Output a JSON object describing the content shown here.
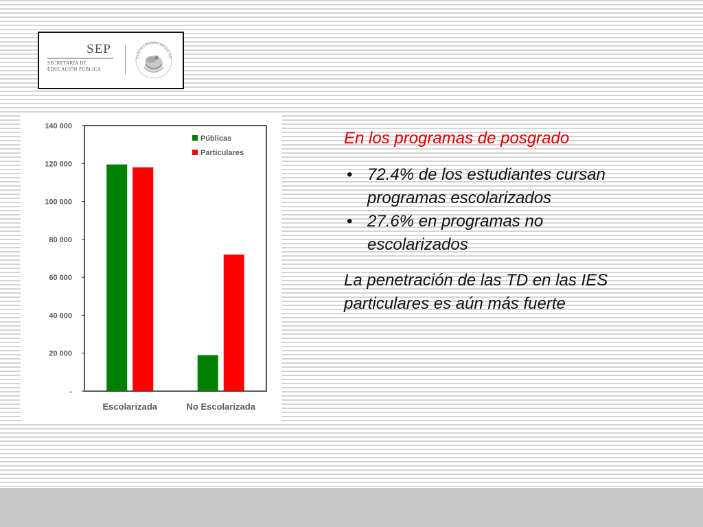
{
  "logo": {
    "acronym": "SEP",
    "subtitle_line1": "SECRETARÍA DE",
    "subtitle_line2": "EDUCACIÓN PÚBLICA",
    "seal_text": "ESTADOS UNIDOS MEXICANOS"
  },
  "text": {
    "heading": "En los programas de posgrado",
    "bullets": [
      "72.4% de los estudiantes cursan programas escolarizados",
      "27.6% en programas no escolarizados"
    ],
    "closing": "La penetración de las TD en las IES particulares es aún más fuerte"
  },
  "chart_data": {
    "type": "bar",
    "title": "",
    "xlabel": "",
    "ylabel": "",
    "categories": [
      "Escolarizada",
      "No Escolarizada"
    ],
    "series": [
      {
        "name": "Públicas",
        "values": [
          119500,
          19000
        ],
        "color": "#008000"
      },
      {
        "name": "Particulares",
        "values": [
          118000,
          72000
        ],
        "color": "#ff0000"
      }
    ],
    "ylim": [
      0,
      140000
    ],
    "y_ticks": [
      {
        "value": 0,
        "label": "-"
      },
      {
        "value": 20000,
        "label": "20 000"
      },
      {
        "value": 40000,
        "label": "40 000"
      },
      {
        "value": 60000,
        "label": "60 000"
      },
      {
        "value": 80000,
        "label": "80 000"
      },
      {
        "value": 100000,
        "label": "100 000"
      },
      {
        "value": 120000,
        "label": "120 000"
      },
      {
        "value": 140000,
        "label": "140 000"
      }
    ],
    "grid": false,
    "legend_position": "top-right",
    "axis_label_color": "#595959"
  }
}
